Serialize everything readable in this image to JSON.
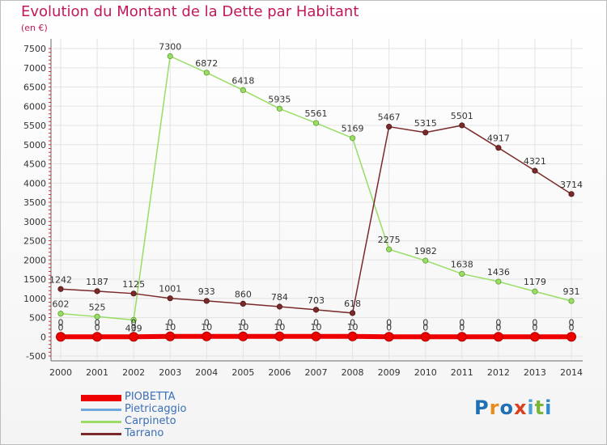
{
  "header": {
    "title": "Evolution du Montant de la Dette par Habitant",
    "subtitle": "(en €)"
  },
  "logo": {
    "text": "Proxiti",
    "colors": [
      "#1f6fb5",
      "#e88b1a",
      "#1f6fb5",
      "#d9401f",
      "#4aa0d8",
      "#7ab635",
      "#2e8ad0"
    ]
  },
  "colors": {
    "title": "#c2185b",
    "axis_text": "#333333",
    "grid": "#e3e3e3",
    "legend_text": "#3b6fb6"
  },
  "chart_data": {
    "type": "line",
    "title": "Evolution du Montant de la Dette par Habitant",
    "subtitle": "(en €)",
    "xlabel": "",
    "ylabel": "",
    "x": [
      "2000",
      "2001",
      "2002",
      "2003",
      "2004",
      "2005",
      "2006",
      "2007",
      "2008",
      "2009",
      "2010",
      "2011",
      "2012",
      "2013",
      "2014"
    ],
    "ylim": [
      -500,
      7500
    ],
    "yticks": [
      "-500",
      "0",
      "500",
      "1000",
      "1500",
      "2000",
      "2500",
      "3000",
      "3500",
      "4000",
      "4500",
      "5000",
      "5500",
      "6000",
      "6500",
      "7000",
      "7500"
    ],
    "grid": true,
    "legend_position": "bottom-left",
    "series": [
      {
        "name": "PIOBETTA",
        "color": "#ee0000",
        "values": [
          0,
          0,
          0,
          10,
          10,
          10,
          10,
          10,
          10,
          0,
          0,
          0,
          0,
          0,
          0
        ],
        "labels": [
          "0",
          "0",
          "0",
          "10",
          "10",
          "10",
          "10",
          "10",
          "10",
          "0",
          "0",
          "0",
          "0",
          "0",
          "0"
        ]
      },
      {
        "name": "Pietricaggio",
        "color": "#6fa8dc",
        "values": [
          0,
          0,
          0,
          0,
          0,
          0,
          0,
          0,
          0,
          0,
          0,
          0,
          0,
          0,
          0
        ],
        "labels": [
          "0",
          "0",
          "0",
          "0",
          "0",
          "0",
          "0",
          "0",
          "0",
          "0",
          "0",
          "0",
          "0",
          "0",
          "0"
        ]
      },
      {
        "name": "Carpineto",
        "color": "#99dd66",
        "values": [
          602,
          525,
          439,
          7300,
          6872,
          6418,
          5935,
          5561,
          5169,
          2275,
          1982,
          1638,
          1436,
          1179,
          931
        ],
        "labels": [
          "602",
          "525",
          "439",
          "7300",
          "6872",
          "6418",
          "5935",
          "5561",
          "5169",
          "2275",
          "1982",
          "1638",
          "1436",
          "1179",
          "931"
        ]
      },
      {
        "name": "Tarrano",
        "color": "#7a2a2a",
        "values": [
          1242,
          1187,
          1125,
          1001,
          933,
          860,
          784,
          703,
          618,
          5467,
          5315,
          5501,
          4917,
          4321,
          3714
        ],
        "labels": [
          "1242",
          "1187",
          "1125",
          "1001",
          "933",
          "860",
          "784",
          "703",
          "618",
          "5467",
          "5315",
          "5501",
          "4917",
          "4321",
          "3714"
        ]
      }
    ]
  }
}
